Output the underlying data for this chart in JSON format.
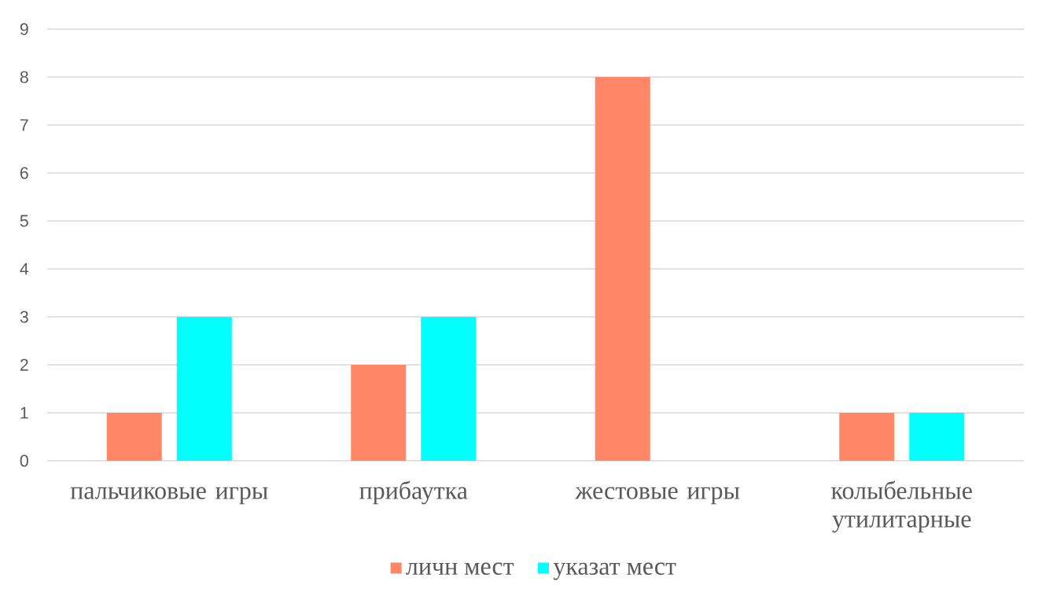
{
  "chart_data": {
    "type": "bar",
    "categories": [
      "пальчиковые игры",
      "прибаутка",
      "жестовые игры",
      "колыбельные утилитарные"
    ],
    "series": [
      {
        "name": "личн мест",
        "color": "#ff8667",
        "values": [
          1,
          2,
          8,
          1
        ]
      },
      {
        "name": "указат мест",
        "color": "#00ffff",
        "values": [
          3,
          3,
          null,
          1
        ]
      }
    ],
    "ylim": [
      0,
      9
    ],
    "yticks": [
      0,
      1,
      2,
      3,
      4,
      5,
      6,
      7,
      8,
      9
    ],
    "grid": "y",
    "legend": "bottom"
  }
}
